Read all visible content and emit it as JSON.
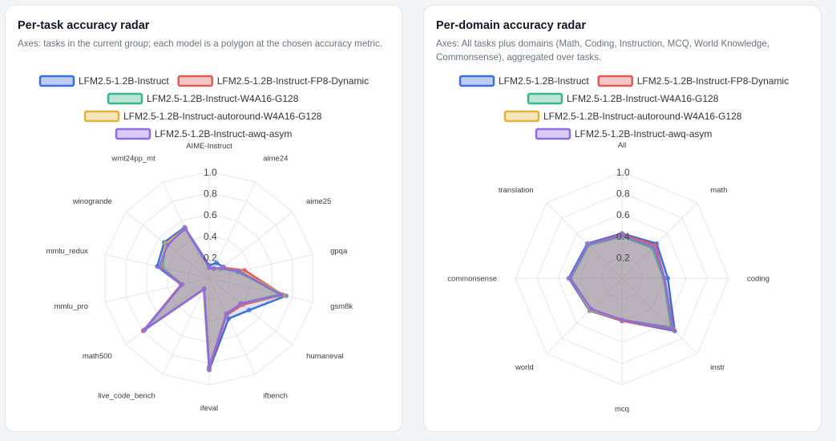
{
  "panels": [
    {
      "title": "Per-task accuracy radar",
      "description": "Axes: tasks in the current group; each model is a polygon at the chosen accuracy metric."
    },
    {
      "title": "Per-domain accuracy radar",
      "description": "Axes: All tasks plus domains (Math, Coding, Instruction, MCQ, World Knowledge, Commonsense), aggregated over tasks."
    }
  ],
  "chart_data": [
    {
      "type": "radar",
      "title": "Per-task accuracy radar",
      "axes": [
        "AIME-Instruct",
        "aime24",
        "aime25",
        "gpqa",
        "gsm8k",
        "humaneval",
        "ifbench",
        "ifeval",
        "live_code_bench",
        "math500",
        "mmlu_pro",
        "mmlu_redux",
        "winogrande",
        "wmt24pp_mt"
      ],
      "radial_ticks": [
        "0.2",
        "0.4",
        "0.6",
        "0.8",
        "1.0"
      ],
      "range": [
        0,
        1
      ],
      "grid": true,
      "legend": "top",
      "series": [
        {
          "name": "LFM2.5-1.2B-Instruct",
          "color": "#3f6fd8",
          "values": [
            0.12,
            0.16,
            0.17,
            0.27,
            0.74,
            0.48,
            0.42,
            0.86,
            0.12,
            0.79,
            0.27,
            0.5,
            0.54,
            0.53
          ]
        },
        {
          "name": "LFM2.5-1.2B-Instruct-FP8-Dynamic",
          "color": "#e05a5a",
          "values": [
            0.1,
            0.1,
            0.16,
            0.34,
            0.71,
            0.4,
            0.38,
            0.85,
            0.11,
            0.79,
            0.27,
            0.47,
            0.52,
            0.52
          ]
        },
        {
          "name": "LFM2.5-1.2B-Instruct-W4A16-G128",
          "color": "#3ab58a",
          "values": [
            0.1,
            0.1,
            0.14,
            0.28,
            0.68,
            0.38,
            0.37,
            0.83,
            0.11,
            0.77,
            0.26,
            0.45,
            0.52,
            0.51
          ]
        },
        {
          "name": "LFM2.5-1.2B-Instruct-autoround-W4A16-G128",
          "color": "#e0b43c",
          "values": [
            0.1,
            0.1,
            0.15,
            0.3,
            0.72,
            0.38,
            0.37,
            0.84,
            0.12,
            0.78,
            0.26,
            0.47,
            0.52,
            0.52
          ]
        },
        {
          "name": "LFM2.5-1.2B-Instruct-awq-asym",
          "color": "#8f6be0",
          "values": [
            0.1,
            0.1,
            0.15,
            0.29,
            0.7,
            0.38,
            0.37,
            0.84,
            0.11,
            0.78,
            0.26,
            0.48,
            0.5,
            0.52
          ]
        }
      ]
    },
    {
      "type": "radar",
      "title": "Per-domain accuracy radar",
      "axes": [
        "All",
        "math",
        "coding",
        "instr",
        "mcq",
        "world",
        "commonsense",
        "translation"
      ],
      "radial_ticks": [
        "0.2",
        "0.4",
        "0.6",
        "0.8",
        "1.0"
      ],
      "range": [
        0,
        1
      ],
      "grid": true,
      "legend": "top",
      "series": [
        {
          "name": "LFM2.5-1.2B-Instruct",
          "color": "#3f6fd8",
          "values": [
            0.42,
            0.46,
            0.43,
            0.7,
            0.4,
            0.43,
            0.5,
            0.46
          ]
        },
        {
          "name": "LFM2.5-1.2B-Instruct-FP8-Dynamic",
          "color": "#e05a5a",
          "values": [
            0.41,
            0.44,
            0.4,
            0.68,
            0.4,
            0.42,
            0.49,
            0.45
          ]
        },
        {
          "name": "LFM2.5-1.2B-Instruct-W4A16-G128",
          "color": "#3ab58a",
          "values": [
            0.39,
            0.4,
            0.39,
            0.65,
            0.39,
            0.41,
            0.48,
            0.44
          ]
        },
        {
          "name": "LFM2.5-1.2B-Instruct-autoround-W4A16-G128",
          "color": "#e0b43c",
          "values": [
            0.4,
            0.42,
            0.4,
            0.67,
            0.39,
            0.42,
            0.49,
            0.45
          ]
        },
        {
          "name": "LFM2.5-1.2B-Instruct-awq-asym",
          "color": "#8f6be0",
          "values": [
            0.4,
            0.42,
            0.4,
            0.67,
            0.39,
            0.41,
            0.49,
            0.45
          ]
        }
      ]
    }
  ]
}
